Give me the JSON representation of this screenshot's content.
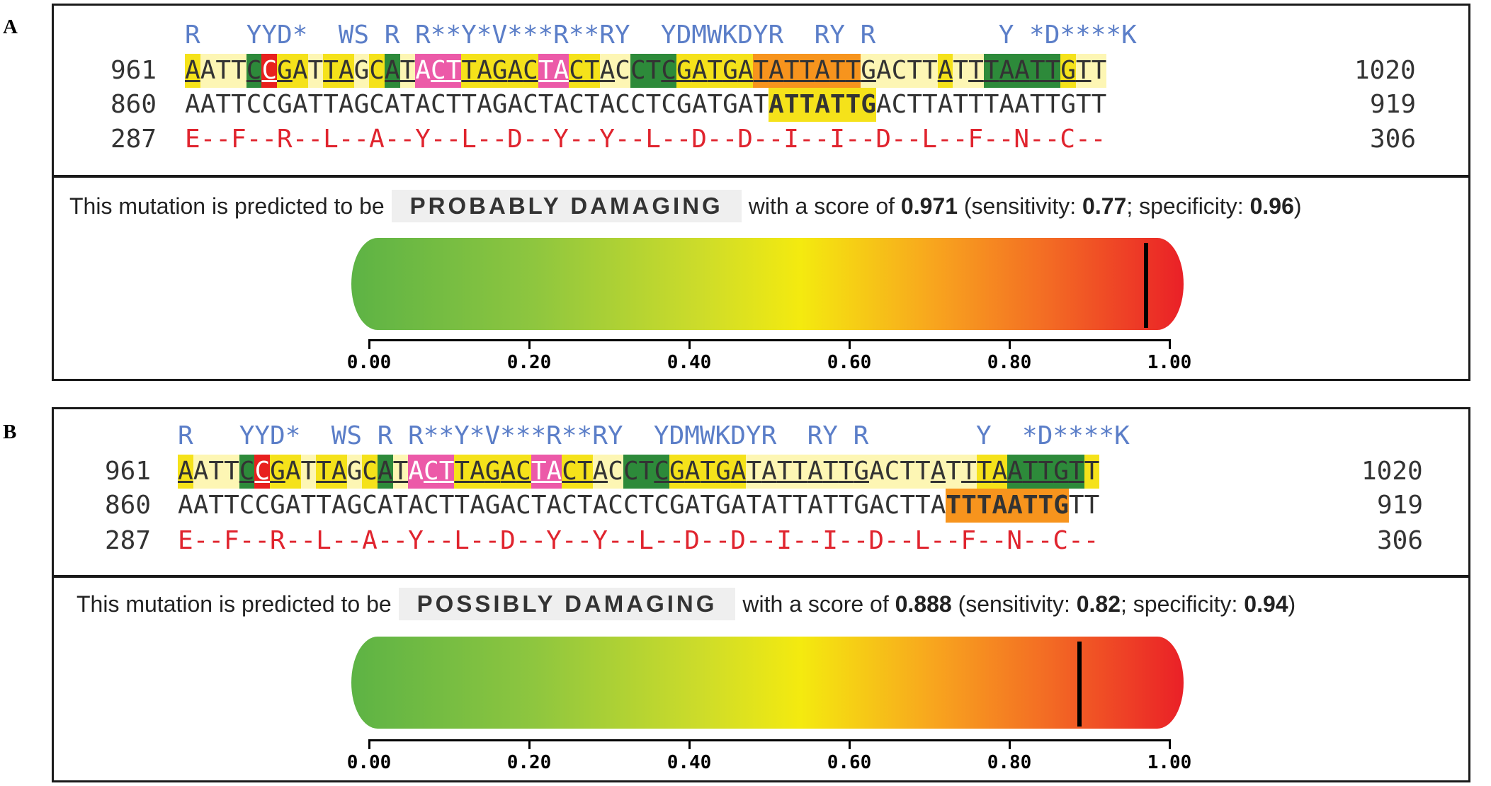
{
  "panels": [
    {
      "label": "A",
      "aa_top": "R   YYD*  WS R R**Y*V***R**RY  YDMWKDYR  RY R        Y *D****K",
      "seq_start_top": "961",
      "seq_end_top": "1020",
      "seq_top": "AATTCCGATTAGCATACTTAGACTACTACCTCGATGATATTATTGACTTATTTAATTGTT",
      "seq_start_mid": "860",
      "seq_end_mid": "919",
      "seq_mid": "AATTCCGATTAGCATACTTAGACTACTACCTCGATGATATTATTGACTTATTTAATTGTT",
      "seq_start_bot": "287",
      "seq_end_bot": "306",
      "seq_bot": "E--F--R--L--A--Y--L--D--Y--Y--L--D--D--I--I--D--L--F--N--C--",
      "pred_prefix": "This mutation is predicted to be",
      "verdict": "PROBABLY DAMAGING",
      "pred_mid": "with a score of",
      "score": "0.971",
      "sens_label": "(sensitivity:",
      "sensitivity": "0.77",
      "spec_label": "; specificity:",
      "specificity": "0.96",
      "close": ")",
      "score_value": 0.971
    },
    {
      "label": "B",
      "aa_top": "R   YYD*  WS R R**Y*V***R**RY  YDMWKDYR  RY R       Y  *D****K",
      "seq_start_top": "961",
      "seq_end_top": "1020",
      "seq_top": "AATTCCGATTAGCATACTTAGACTACTACCTCGATGATATTATTGACTTATTTAATTGTT",
      "seq_start_mid": "860",
      "seq_end_mid": "919",
      "seq_mid": "AATTCCGATTAGCATACTTAGACTACTACCTCGATGATATTATTGACTTATTTAATTGTT",
      "seq_start_bot": "287",
      "seq_end_bot": "306",
      "seq_bot": "E--F--R--L--A--Y--L--D--Y--Y--L--D--D--I--I--D--L--F--N--C--",
      "pred_prefix": "This mutation is predicted to be",
      "verdict": "POSSIBLY DAMAGING",
      "pred_mid": "with a score of",
      "score": "0.888",
      "sens_label": "(sensitivity:",
      "sensitivity": "0.82",
      "spec_label": "; specificity:",
      "specificity": "0.94",
      "close": ")",
      "score_value": 0.888
    }
  ],
  "axis_ticks": [
    "0.00",
    "0.20",
    "0.40",
    "0.60",
    "0.80",
    "1.00"
  ],
  "colors": {
    "green_dark": "#2d8a3a",
    "yellow": "#f5e21a",
    "light_yellow": "#fdf6b4",
    "red": "#e8201e",
    "pink": "#ec5aa8",
    "orange": "#f7941d",
    "protein_text": "#e0242e",
    "aa_text": "#5b7ec8"
  }
}
